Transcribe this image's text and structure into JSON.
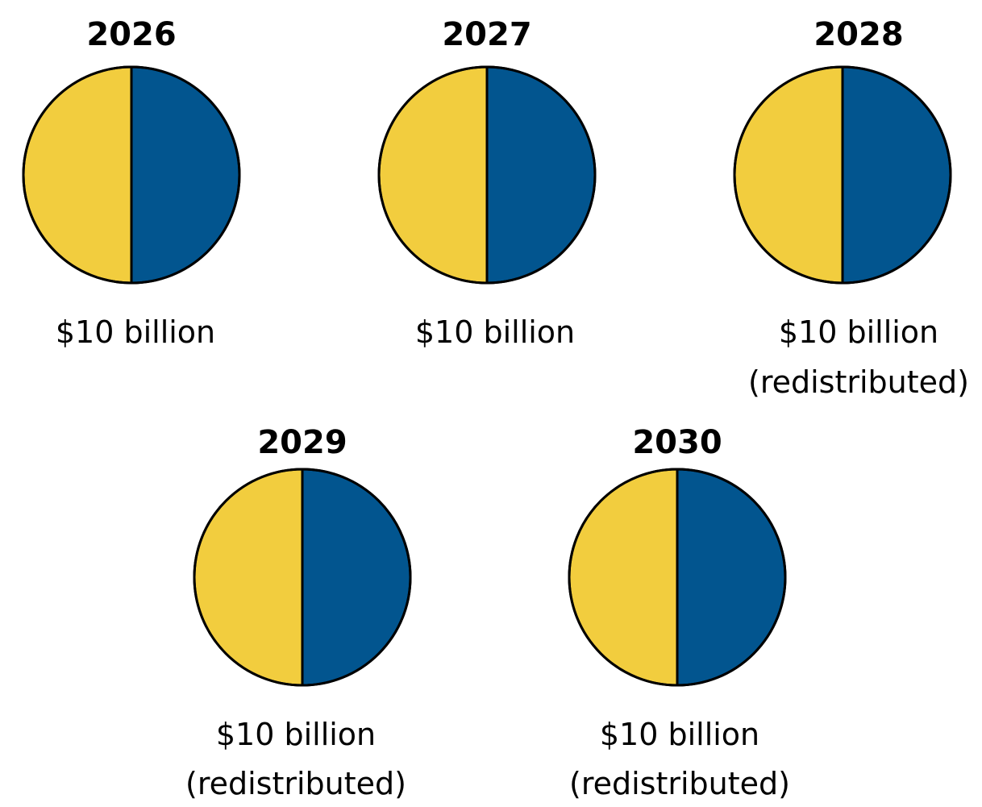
{
  "colors": {
    "slice_left": "#F2CD3E",
    "slice_right": "#02558F",
    "outline": "#000000"
  },
  "chart_data": [
    {
      "type": "pie",
      "title": "2026",
      "annotation": [
        "$10 billion"
      ],
      "slices": [
        {
          "value": 50,
          "color": "#02558F"
        },
        {
          "value": 50,
          "color": "#F2CD3E"
        }
      ]
    },
    {
      "type": "pie",
      "title": "2027",
      "annotation": [
        "$10 billion"
      ],
      "slices": [
        {
          "value": 50,
          "color": "#02558F"
        },
        {
          "value": 50,
          "color": "#F2CD3E"
        }
      ]
    },
    {
      "type": "pie",
      "title": "2028",
      "annotation": [
        "$10 billion",
        "(redistributed)"
      ],
      "slices": [
        {
          "value": 50,
          "color": "#02558F"
        },
        {
          "value": 50,
          "color": "#F2CD3E"
        }
      ]
    },
    {
      "type": "pie",
      "title": "2029",
      "annotation": [
        "$10 billion",
        "(redistributed)"
      ],
      "slices": [
        {
          "value": 50,
          "color": "#02558F"
        },
        {
          "value": 50,
          "color": "#F2CD3E"
        }
      ]
    },
    {
      "type": "pie",
      "title": "2030",
      "annotation": [
        "$10 billion",
        "(redistributed)"
      ],
      "slices": [
        {
          "value": 50,
          "color": "#02558F"
        },
        {
          "value": 50,
          "color": "#F2CD3E"
        }
      ]
    }
  ]
}
